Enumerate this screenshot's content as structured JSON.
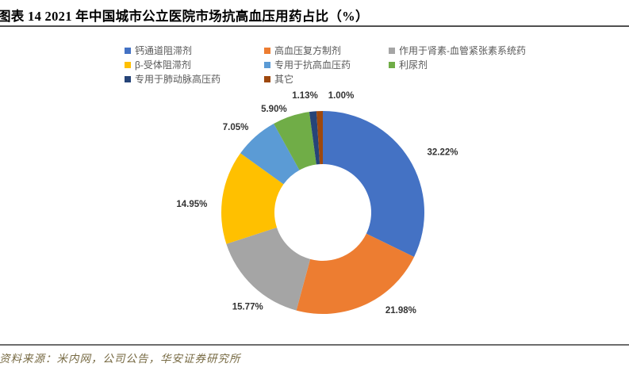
{
  "page": {
    "title": "图表 14 2021 年中国城市公立医院市场抗高血压用药占比（%）",
    "source": "资料来源：米内网，公司公告，华安证券研究所"
  },
  "chart_data": {
    "type": "pie",
    "subtype": "donut",
    "title": "2021 年中国城市公立医院市场抗高血压用药占比（%）",
    "unit": "%",
    "direction": "clockwise",
    "start_angle_deg": 0,
    "inner_radius_ratio": 0.48,
    "legend_position": "top",
    "legend_columns": 3,
    "series": [
      {
        "name": "钙通道阻滞剂",
        "value": 32.22,
        "label": "32.22%",
        "color": "#4472C4"
      },
      {
        "name": "高血压复方制剂",
        "value": 21.98,
        "label": "21.98%",
        "color": "#ED7D31"
      },
      {
        "name": "作用于肾素-血管紧张素系统药",
        "value": 15.77,
        "label": "15.77%",
        "color": "#A5A5A5"
      },
      {
        "name": "β-受体阻滞剂",
        "value": 14.95,
        "label": "14.95%",
        "color": "#FFC000"
      },
      {
        "name": "专用于抗高血压药",
        "value": 7.05,
        "label": "7.05%",
        "color": "#5B9BD5"
      },
      {
        "name": "利尿剂",
        "value": 5.9,
        "label": "5.90%",
        "color": "#70AD47"
      },
      {
        "name": "专用于肺动脉高压药",
        "value": 1.13,
        "label": "1.13%",
        "color": "#264478"
      },
      {
        "name": "其它",
        "value": 1.0,
        "label": "1.00%",
        "color": "#9E480E"
      }
    ]
  }
}
